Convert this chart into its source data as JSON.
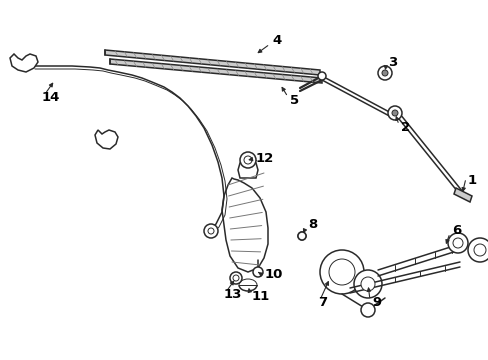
{
  "bg_color": "#ffffff",
  "line_color": "#2a2a2a",
  "label_color": "#000000",
  "fig_width": 4.89,
  "fig_height": 3.6,
  "dpi": 100,
  "label_fontsize": 9.5,
  "lw_thin": 0.7,
  "lw_med": 1.1,
  "lw_thick": 1.6,
  "lw_blade": 2.2
}
